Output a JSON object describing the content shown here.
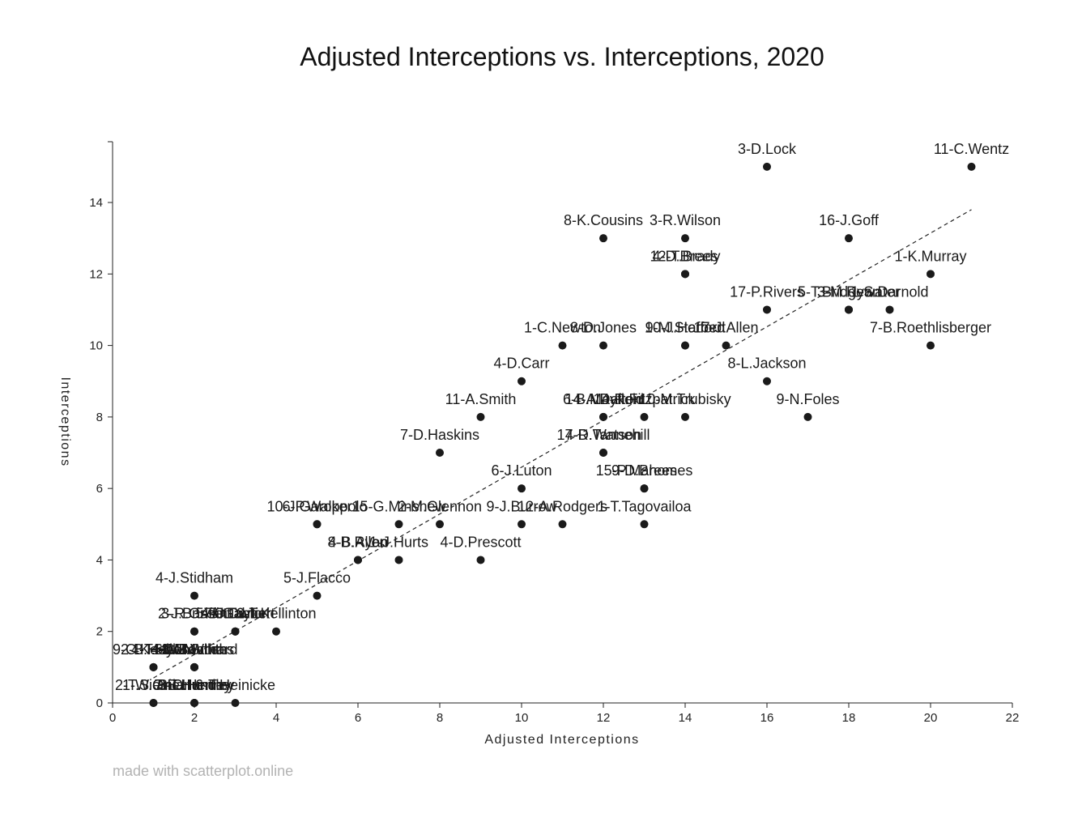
{
  "chart_data": {
    "type": "scatter",
    "title": "Adjusted Interceptions vs. Interceptions, 2020",
    "xlabel": "Adjusted Interceptions",
    "ylabel": "Interceptions",
    "xlim": [
      0,
      22
    ],
    "ylim": [
      0,
      15.7
    ],
    "xticks": [
      0,
      2,
      4,
      6,
      8,
      10,
      12,
      14,
      16,
      18,
      20,
      22
    ],
    "yticks": [
      0,
      2,
      4,
      6,
      8,
      10,
      12,
      14
    ],
    "point_color": "#1a1a1a",
    "trendline": {
      "style": "dashed",
      "from": [
        1,
        0.7
      ],
      "to": [
        21,
        13.8
      ]
    },
    "grid": false,
    "points": [
      {
        "label": "3-D.Lock",
        "x": 16,
        "y": 15
      },
      {
        "label": "11-C.Wentz",
        "x": 21,
        "y": 15
      },
      {
        "label": "8-K.Cousins",
        "x": 12,
        "y": 13
      },
      {
        "label": "3-R.Wilson",
        "x": 14,
        "y": 13
      },
      {
        "label": "16-J.Goff",
        "x": 18,
        "y": 13
      },
      {
        "label": "4-D.Brees",
        "x": 14,
        "y": 12
      },
      {
        "label": "12-T.Brady",
        "x": 14,
        "y": 12
      },
      {
        "label": "1-K.Murray",
        "x": 20,
        "y": 12
      },
      {
        "label": "17-P.Rivers",
        "x": 16,
        "y": 11
      },
      {
        "label": "5-T.Bridgewater",
        "x": 18,
        "y": 11
      },
      {
        "label": "3-M.Ryan",
        "x": 18,
        "y": 11
      },
      {
        "label": "1-S.Darnold",
        "x": 19,
        "y": 11
      },
      {
        "label": "1-C.Newton",
        "x": 11,
        "y": 10
      },
      {
        "label": "8-D.Jones",
        "x": 12,
        "y": 10
      },
      {
        "label": "9-M.Stafford",
        "x": 14,
        "y": 10
      },
      {
        "label": "10-J.Herbert",
        "x": 14,
        "y": 10
      },
      {
        "label": "17-J.Allen",
        "x": 15,
        "y": 10
      },
      {
        "label": "7-B.Roethlisberger",
        "x": 20,
        "y": 10
      },
      {
        "label": "4-D.Carr",
        "x": 10,
        "y": 9
      },
      {
        "label": "8-L.Jackson",
        "x": 16,
        "y": 9
      },
      {
        "label": "11-A.Smith",
        "x": 9,
        "y": 8
      },
      {
        "label": "6-B.Mayfield",
        "x": 12,
        "y": 8
      },
      {
        "label": "14-A.Dalton",
        "x": 12,
        "y": 8
      },
      {
        "label": "14-R.Fitzpatrick",
        "x": 13,
        "y": 8
      },
      {
        "label": "10-M.Trubisky",
        "x": 14,
        "y": 8
      },
      {
        "label": "9-N.Foles",
        "x": 17,
        "y": 8
      },
      {
        "label": "7-D.Haskins",
        "x": 8,
        "y": 7
      },
      {
        "label": "17-R.Tannehill",
        "x": 12,
        "y": 7
      },
      {
        "label": "4-D.Watson",
        "x": 12,
        "y": 7
      },
      {
        "label": "6-J.Luton",
        "x": 10,
        "y": 6
      },
      {
        "label": "15-P.Mahomes",
        "x": 13,
        "y": 6
      },
      {
        "label": "9-D.Brees",
        "x": 13,
        "y": 6
      },
      {
        "label": "10-J.Garoppolo",
        "x": 5,
        "y": 5
      },
      {
        "label": "6-P.Walker",
        "x": 5,
        "y": 5
      },
      {
        "label": "15-G.Minshew",
        "x": 7,
        "y": 5
      },
      {
        "label": "2-M.Glennon",
        "x": 8,
        "y": 5
      },
      {
        "label": "9-J.Burrow",
        "x": 10,
        "y": 5
      },
      {
        "label": "12-A.Rodgers",
        "x": 11,
        "y": 5
      },
      {
        "label": "1-T.Tagovailoa",
        "x": 13,
        "y": 5
      },
      {
        "label": "4-B.Allen",
        "x": 6,
        "y": 4
      },
      {
        "label": "8-B.Ryan",
        "x": 6,
        "y": 4
      },
      {
        "label": "1-J.Hurts",
        "x": 7,
        "y": 4
      },
      {
        "label": "4-D.Prescott",
        "x": 9,
        "y": 4
      },
      {
        "label": "4-J.Stidham",
        "x": 2,
        "y": 3
      },
      {
        "label": "5-J.Flacco",
        "x": 5,
        "y": 3
      },
      {
        "label": "2-J.Brissett",
        "x": 2,
        "y": 2
      },
      {
        "label": "3-R.Griffin",
        "x": 2,
        "y": 2
      },
      {
        "label": "5-B.Gabbert",
        "x": 3,
        "y": 2
      },
      {
        "label": "7-J.Taylor",
        "x": 3,
        "y": 2
      },
      {
        "label": "4-C.Daniel",
        "x": 3,
        "y": 2
      },
      {
        "label": "6-T.Kellinton",
        "x": 4,
        "y": 2
      },
      {
        "label": "9-C.Keenum",
        "x": 1,
        "y": 1
      },
      {
        "label": "2-B.Hoyer",
        "x": 1,
        "y": 1
      },
      {
        "label": "4-T.Hill",
        "x": 1,
        "y": 1
      },
      {
        "label": "1-M.White",
        "x": 2,
        "y": 1
      },
      {
        "label": "3-G.Smith",
        "x": 2,
        "y": 1
      },
      {
        "label": "4-C.Beathard",
        "x": 2,
        "y": 1
      },
      {
        "label": "6-M.Mullens",
        "x": 2,
        "y": 1
      },
      {
        "label": "2-T.Siemian",
        "x": 1,
        "y": 0
      },
      {
        "label": "1-W.Grier",
        "x": 1,
        "y": 0
      },
      {
        "label": "7-B.Hundley",
        "x": 2,
        "y": 0
      },
      {
        "label": "8-T.Huntley",
        "x": 2,
        "y": 0
      },
      {
        "label": "3-C.Henne",
        "x": 2,
        "y": 0
      },
      {
        "label": "6-T.Heinicke",
        "x": 3,
        "y": 0
      }
    ]
  },
  "footer": {
    "watermark": "made with scatterplot.online"
  }
}
